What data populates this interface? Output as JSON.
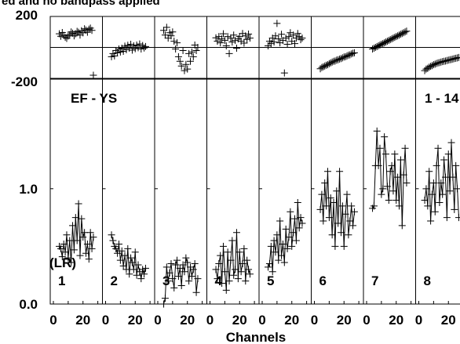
{
  "title": "ed and no bandpass applied",
  "xlabel": "Channels",
  "baseline_label": "EF - YS",
  "stokes_label": "(LR)",
  "page_label": "1 - 14",
  "chart_data": {
    "type": "line",
    "title": "ed and no bandpass applied",
    "xlabel": "Channels",
    "phase_axis": {
      "ticks": [
        "200",
        "-200"
      ],
      "range": [
        -200,
        200
      ]
    },
    "amplitude_axis": {
      "ticks": [
        "1.0",
        "0.0"
      ],
      "range": [
        0.0,
        1.95
      ]
    },
    "x_ticks": [
      "0",
      "20"
    ],
    "x_range": [
      0,
      31
    ],
    "panels": [
      {
        "label": "1",
        "phase": [
          88,
          72,
          96,
          78,
          65,
          58,
          74,
          82,
          100,
          92,
          75,
          88,
          104,
          98,
          80,
          108,
          94,
          120,
          112,
          98,
          118,
          125,
          110,
          -180
        ],
        "amplitude": [
          0.5,
          0.48,
          0.41,
          0.52,
          0.45,
          0.6,
          0.4,
          0.55,
          0.36,
          0.68,
          0.47,
          0.75,
          0.55,
          0.87,
          0.42,
          0.74,
          0.58,
          0.62,
          0.44,
          0.52,
          0.39,
          0.62,
          0.48,
          0.58
        ]
      },
      {
        "label": "2",
        "phase": [
          -60,
          -40,
          -55,
          -20,
          -35,
          -10,
          -30,
          -5,
          -25,
          8,
          -15,
          14,
          -5,
          20,
          -18,
          10,
          -8,
          15,
          -2,
          22,
          -10,
          12,
          -4,
          6
        ],
        "amplitude": [
          0.6,
          0.55,
          0.5,
          0.48,
          0.44,
          0.52,
          0.38,
          0.46,
          0.33,
          0.42,
          0.3,
          0.48,
          0.26,
          0.4,
          0.36,
          0.3,
          0.45,
          0.25,
          0.34,
          0.28,
          0.22,
          0.3,
          0.26,
          0.31
        ]
      },
      {
        "label": "3",
        "phase": [
          110,
          80,
          130,
          60,
          95,
          75,
          100,
          40,
          -10,
          30,
          -60,
          -90,
          -120,
          -20,
          -150,
          -110,
          -140,
          -40,
          -90,
          -30,
          -60,
          15,
          -20,
          0
        ],
        "amplitude": [
          0.0,
          0.05,
          0.32,
          0.2,
          0.27,
          0.35,
          0.22,
          0.14,
          0.34,
          0.38,
          0.24,
          0.31,
          0.16,
          0.34,
          0.28,
          0.4,
          0.36,
          0.2,
          0.32,
          0.24,
          0.3,
          0.35,
          0.1,
          0.22
        ]
      },
      {
        "label": "4",
        "phase": [
          62,
          40,
          70,
          30,
          55,
          88,
          45,
          10,
          70,
          -40,
          60,
          35,
          80,
          45,
          -5,
          55,
          70,
          40,
          90,
          28,
          75,
          52,
          86,
          60
        ],
        "amplitude": [
          0.3,
          0.22,
          0.35,
          0.42,
          0.18,
          0.5,
          0.28,
          0.12,
          0.45,
          0.2,
          0.38,
          0.55,
          0.25,
          0.3,
          0.62,
          0.22,
          0.45,
          0.28,
          0.35,
          0.48,
          0.2,
          0.38,
          0.3,
          0.26
        ]
      },
      {
        "label": "5",
        "phase": [
          10,
          40,
          25,
          60,
          35,
          75,
          155,
          55,
          30,
          85,
          45,
          -165,
          60,
          20,
          70,
          95,
          40,
          80,
          25,
          60,
          90,
          70,
          50,
          60
        ],
        "amplitude": [
          0.32,
          0.35,
          0.5,
          0.28,
          0.55,
          0.45,
          0.6,
          0.38,
          0.72,
          0.42,
          0.52,
          0.36,
          0.65,
          0.48,
          0.58,
          0.8,
          0.5,
          0.62,
          0.74,
          0.55,
          0.88,
          0.66,
          0.75,
          0.7
        ]
      },
      {
        "label": "6",
        "phase": [
          -138,
          -130,
          -125,
          -120,
          -115,
          -112,
          -105,
          -100,
          -95,
          -90,
          -88,
          -82,
          -80,
          -75,
          -72,
          -68,
          -62,
          -60,
          -55,
          -50,
          -48,
          -42,
          -38,
          -35
        ],
        "amplitude": [
          0.82,
          0.95,
          0.72,
          1.05,
          0.85,
          1.15,
          0.75,
          0.92,
          0.6,
          0.88,
          0.5,
          0.98,
          0.7,
          1.15,
          0.62,
          0.85,
          0.5,
          0.78,
          0.95,
          0.6,
          0.72,
          0.85,
          0.68,
          0.8
        ]
      },
      {
        "label": "7",
        "phase": [
          -10,
          -5,
          0,
          5,
          10,
          15,
          20,
          25,
          30,
          35,
          40,
          45,
          50,
          55,
          60,
          65,
          70,
          75,
          80,
          85,
          90,
          95,
          100,
          105
        ],
        "amplitude": [
          0.83,
          0.85,
          1.2,
          1.5,
          1.2,
          1.35,
          0.95,
          1.0,
          1.45,
          1.3,
          1.02,
          0.9,
          1.15,
          1.2,
          0.98,
          1.3,
          0.9,
          1.1,
          0.85,
          1.25,
          0.68,
          1.12,
          1.35,
          1.05
        ]
      },
      {
        "label": "8",
        "phase": [
          -150,
          -140,
          -135,
          -128,
          -122,
          -118,
          -112,
          -108,
          -104,
          -100,
          -98,
          -95,
          -92,
          -90,
          -88,
          -85,
          -82,
          -80,
          -78,
          -75,
          -72,
          -70,
          -68,
          -65
        ],
        "amplitude": [
          0.9,
          1.0,
          0.85,
          1.15,
          0.72,
          0.95,
          1.05,
          0.8,
          1.2,
          1.35,
          0.88,
          1.05,
          0.95,
          1.25,
          1.1,
          0.75,
          1.3,
          0.98,
          1.4,
          1.1,
          0.82,
          1.2,
          1.0,
          0.75
        ]
      }
    ]
  }
}
